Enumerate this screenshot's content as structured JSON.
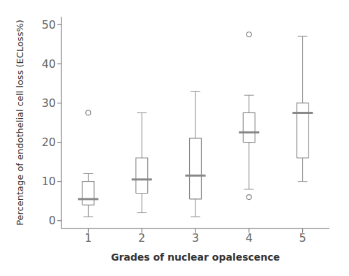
{
  "chart_data": {
    "type": "box",
    "xlabel": "Grades of nuclear opalescence",
    "ylabel": "Percentage of endothelial cell loss (ECLoss%)",
    "x": [
      1,
      2,
      3,
      4,
      5
    ],
    "boxes": [
      {
        "whisker_low": 1.0,
        "q1": 4.0,
        "median": 5.5,
        "q3": 10.0,
        "whisker_high": 12.0,
        "outliers": [
          27.5
        ]
      },
      {
        "whisker_low": 2.0,
        "q1": 7.0,
        "median": 10.5,
        "q3": 16.0,
        "whisker_high": 27.5,
        "outliers": []
      },
      {
        "whisker_low": 1.0,
        "q1": 5.5,
        "median": 11.5,
        "q3": 21.0,
        "whisker_high": 33.0,
        "outliers": []
      },
      {
        "whisker_low": 8.0,
        "q1": 20.0,
        "median": 22.5,
        "q3": 27.5,
        "whisker_high": 32.0,
        "outliers": [
          6.0,
          47.5
        ]
      },
      {
        "whisker_low": 10.0,
        "q1": 16.0,
        "median": 27.5,
        "q3": 30.0,
        "whisker_high": 47.0,
        "outliers": []
      }
    ],
    "xlim": [
      0.5,
      5.5
    ],
    "xticks": [
      1,
      2,
      3,
      4,
      5
    ],
    "ylim": [
      -2,
      52
    ],
    "yticks": [
      0,
      10,
      20,
      30,
      40,
      50
    ],
    "color": "#888888",
    "grid": false
  }
}
